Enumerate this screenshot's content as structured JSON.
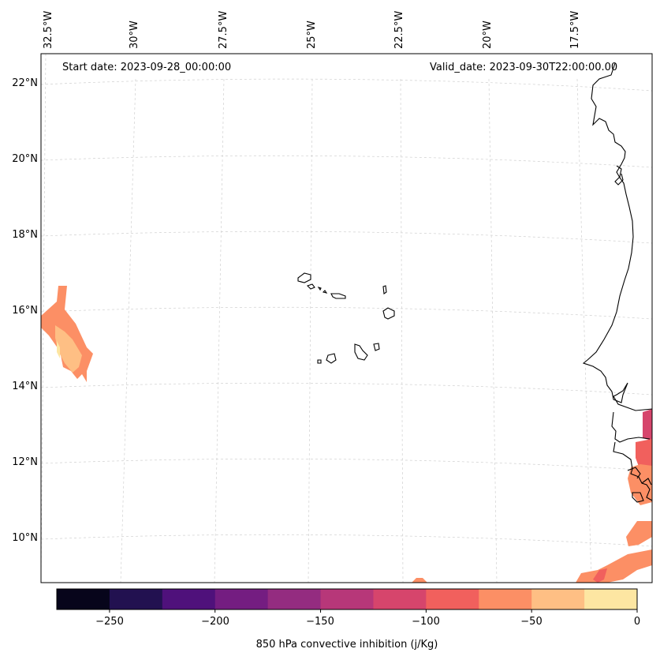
{
  "map": {
    "start_date": "Start date: 2023-09-28_00:00:00",
    "valid_date": "Valid_date: 2023-09-30T22:00:00.00",
    "lon_labels": [
      "32.5°W",
      "30°W",
      "27.5°W",
      "25°W",
      "22.5°W",
      "20°W",
      "17.5°W"
    ],
    "lat_labels": [
      "22°N",
      "20°N",
      "18°N",
      "16°N",
      "14°N",
      "12°N",
      "10°N"
    ],
    "land_outline_color": "#000000",
    "gridline_color": "#cccccc"
  },
  "colorbar": {
    "label": "850 hPa convective inhibition (j/Kg)",
    "ticks": [
      "−250",
      "−200",
      "−150",
      "−100",
      "−50",
      "0"
    ],
    "levels": [
      -275,
      -250,
      -225,
      -200,
      -175,
      -150,
      -125,
      -100,
      -75,
      -50,
      -25,
      0
    ],
    "colors": [
      "#07051b",
      "#221150",
      "#4f117b",
      "#741d81",
      "#942c80",
      "#b73779",
      "#d6456c",
      "#f1605d",
      "#fc8f65",
      "#febf84",
      "#fde6a2"
    ]
  }
}
